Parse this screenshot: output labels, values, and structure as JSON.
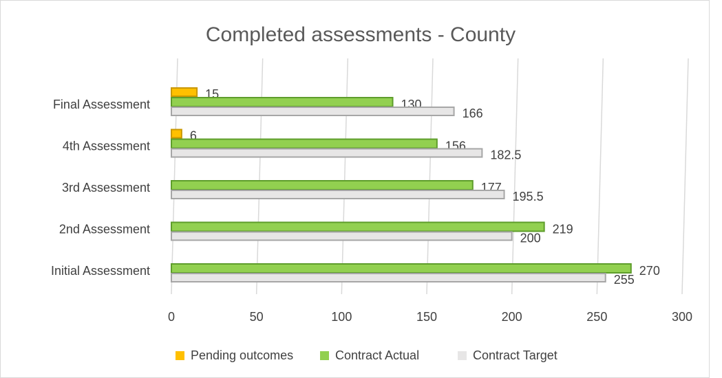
{
  "chart_data": {
    "type": "bar",
    "orientation": "horizontal",
    "title": "Completed assessments - County",
    "categories": [
      "Initial Assessment",
      "2nd Assessment",
      "3rd Assessment",
      "4th Assessment",
      "Final Assessment"
    ],
    "series": [
      {
        "name": "Pending outcomes",
        "color": "#ffc000",
        "values": [
          null,
          null,
          null,
          6,
          15
        ]
      },
      {
        "name": "Contract Actual",
        "color": "#92d050",
        "values": [
          270,
          219,
          177,
          156,
          130
        ]
      },
      {
        "name": "Contract Target",
        "color": "#e7e6e6",
        "values": [
          255,
          200,
          195.5,
          182.5,
          166
        ]
      }
    ],
    "xlim": [
      0,
      300
    ],
    "xticks": [
      0,
      50,
      100,
      150,
      200,
      250,
      300
    ],
    "grid": true,
    "legend": "bottom"
  }
}
